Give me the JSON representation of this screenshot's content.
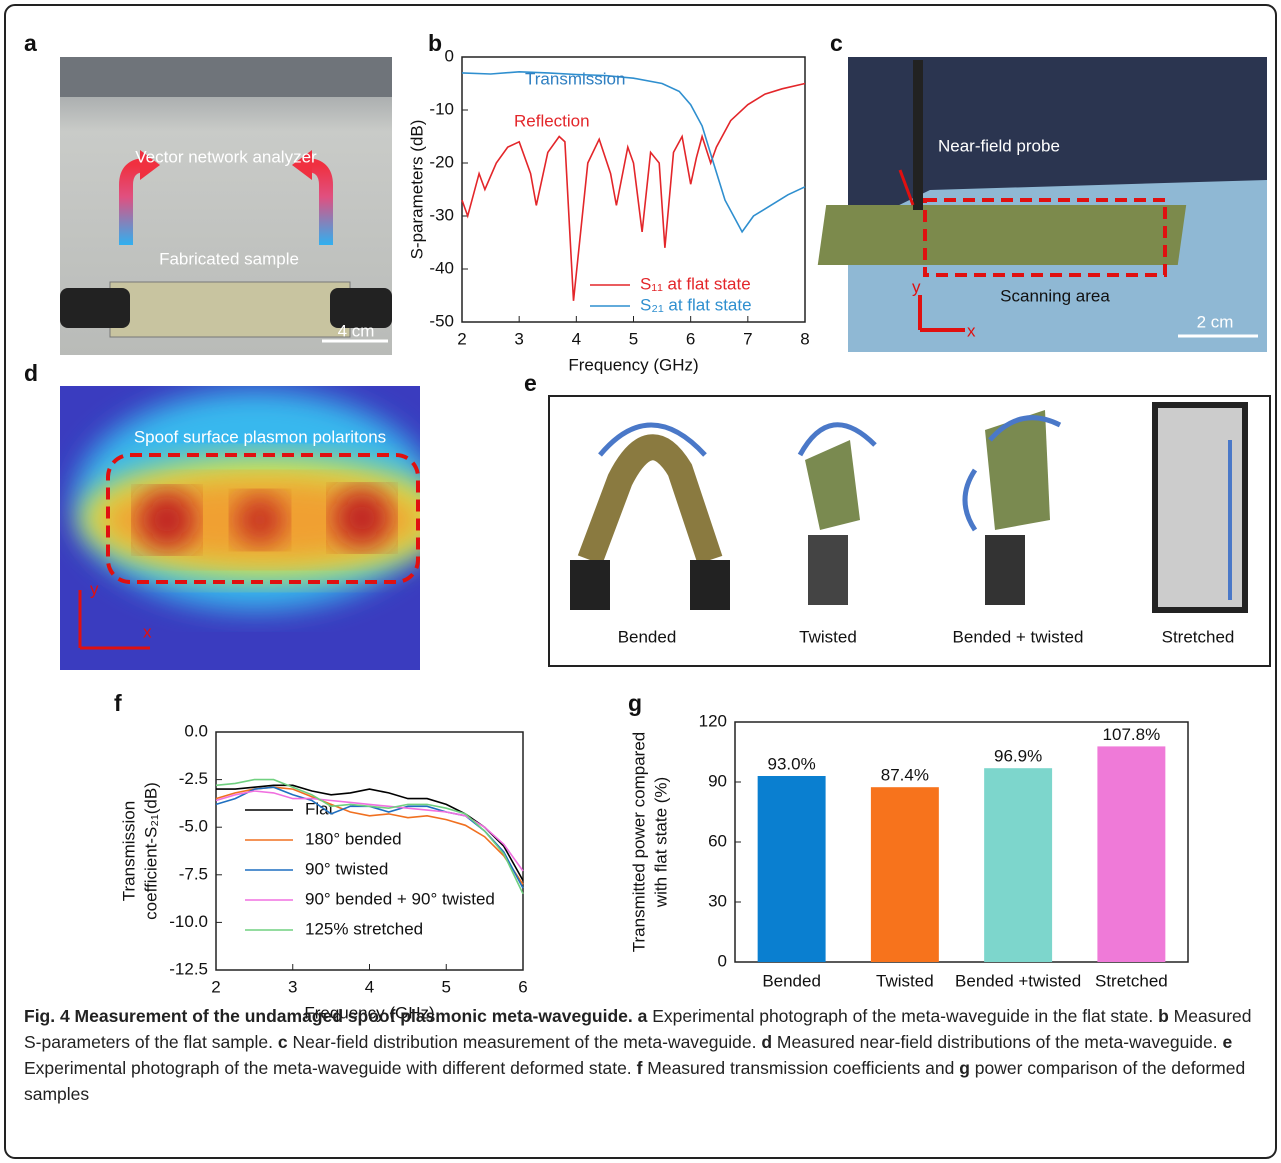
{
  "panel_labels": [
    "a",
    "b",
    "c",
    "d",
    "e",
    "f",
    "g"
  ],
  "photos": {
    "a": {
      "analyzer": "Vector network analyzer",
      "sample": "Fabricated sample",
      "scale": "4 cm"
    },
    "c": {
      "probe": "Near-field probe",
      "area": "Scanning area",
      "scale": "2 cm",
      "y": "y",
      "x": "x"
    },
    "d": {
      "title": "Spoof surface plasmon polaritons",
      "y": "y",
      "x": "x"
    },
    "e": {
      "states": [
        "Bended",
        "Twisted",
        "Bended + twisted",
        "Stretched"
      ]
    }
  },
  "chart_data": [
    {
      "type": "line",
      "xlabel": "Frequency (GHz)",
      "ylabel": [
        "S-parameters (dB)"
      ],
      "xlim": [
        2,
        8
      ],
      "xticks": [
        2,
        3,
        4,
        5,
        6,
        7,
        8
      ],
      "ylim": [
        -50,
        0
      ],
      "yticks": [
        -50,
        -40,
        -30,
        -20,
        -10,
        0
      ],
      "annotations": [
        {
          "text": "Transmission",
          "color": "#2f7fc1"
        },
        {
          "text": "Reflection",
          "color": "#e3262a"
        }
      ],
      "series": [
        {
          "name": "S₁₁ at flat state",
          "color": "#e3262a",
          "x": [
            2,
            2.1,
            2.3,
            2.4,
            2.6,
            2.8,
            3.0,
            3.2,
            3.3,
            3.5,
            3.7,
            3.8,
            3.95,
            4.2,
            4.4,
            4.6,
            4.7,
            4.9,
            5.0,
            5.15,
            5.3,
            5.45,
            5.55,
            5.7,
            5.85,
            6.0,
            6.1,
            6.2,
            6.35,
            6.45,
            6.7,
            7.0,
            7.3,
            7.6,
            8
          ],
          "values": [
            -27,
            -30,
            -22,
            -25,
            -20,
            -17,
            -16,
            -22,
            -28,
            -18,
            -15,
            -16,
            -46,
            -20,
            -15.5,
            -22,
            -28,
            -17,
            -20,
            -33,
            -18,
            -20,
            -36,
            -18,
            -15,
            -24,
            -19,
            -15,
            -20,
            -17,
            -12,
            -9,
            -7,
            -6,
            -5
          ]
        },
        {
          "name": "S₂₁ at flat state",
          "color": "#2f8fcf",
          "x": [
            2,
            2.5,
            3,
            3.5,
            4,
            4.5,
            5,
            5.5,
            5.8,
            6,
            6.2,
            6.4,
            6.6,
            6.8,
            6.9,
            7.1,
            7.4,
            7.7,
            8
          ],
          "values": [
            -3,
            -3.2,
            -2.8,
            -3,
            -3.3,
            -3.5,
            -4,
            -5,
            -6.5,
            -9,
            -13,
            -20,
            -27,
            -31,
            -33,
            -30,
            -28,
            -26,
            -24.5
          ]
        }
      ]
    },
    {
      "type": "line",
      "xlabel": "Frequency (GHz)",
      "ylabel": [
        "Transmission",
        "coefficient-S₂₁(dB)"
      ],
      "xlim": [
        2,
        6
      ],
      "xticks": [
        2,
        3,
        4,
        5,
        6
      ],
      "ylim": [
        -12.5,
        0
      ],
      "yticks": [
        -12.5,
        {
          "value": -10,
          "label": "-10.0"
        },
        -7.5,
        {
          "value": -5,
          "label": "-5.0"
        },
        -2.5,
        {
          "value": 0,
          "label": "0.0"
        }
      ],
      "x": [
        2,
        2.25,
        2.5,
        2.75,
        3,
        3.25,
        3.5,
        3.75,
        4,
        4.25,
        4.5,
        4.75,
        5,
        5.25,
        5.5,
        5.75,
        6
      ],
      "series": [
        {
          "name": "Flat",
          "color": "#000000",
          "values": [
            -3.0,
            -3.0,
            -2.9,
            -2.8,
            -2.8,
            -3.1,
            -3.3,
            -3.2,
            -3.0,
            -3.2,
            -3.5,
            -3.5,
            -3.8,
            -4.3,
            -5.0,
            -6.0,
            -7.8
          ]
        },
        {
          "name": "180° bended",
          "color": "#f07020",
          "values": [
            -3.5,
            -3.2,
            -3.0,
            -2.9,
            -3.0,
            -3.4,
            -3.8,
            -4.2,
            -4.4,
            -4.3,
            -4.5,
            -4.4,
            -4.6,
            -4.9,
            -5.5,
            -6.5,
            -8.0
          ]
        },
        {
          "name": "90° twisted",
          "color": "#1f6fc0",
          "values": [
            -3.8,
            -3.5,
            -3.0,
            -2.9,
            -3.3,
            -3.6,
            -4.3,
            -3.9,
            -3.9,
            -4.2,
            -3.9,
            -3.9,
            -4.2,
            -4.4,
            -5.2,
            -6.3,
            -8.2
          ]
        },
        {
          "name": "90° bended + 90° twisted",
          "color": "#f070e0",
          "values": [
            -3.6,
            -3.3,
            -3.1,
            -3.2,
            -3.5,
            -3.5,
            -3.6,
            -3.7,
            -3.8,
            -3.9,
            -4.0,
            -4.1,
            -4.2,
            -4.4,
            -5.0,
            -5.9,
            -7.3
          ]
        },
        {
          "name": "125% stretched",
          "color": "#70d080",
          "values": [
            -2.8,
            -2.7,
            -2.5,
            -2.5,
            -2.9,
            -3.3,
            -3.9,
            -3.8,
            -3.9,
            -4.0,
            -3.8,
            -3.8,
            -4.0,
            -4.3,
            -5.2,
            -6.4,
            -8.5
          ]
        }
      ]
    },
    {
      "type": "bar",
      "ylabel": [
        "Transmitted power compared",
        "with flat state (%)"
      ],
      "categories": [
        "Bended",
        "Twisted",
        "Bended +twisted",
        "Stretched"
      ],
      "values": [
        93.0,
        87.4,
        96.9,
        107.8
      ],
      "value_labels": [
        "93.0%",
        "87.4%",
        "96.9%",
        "107.8%"
      ],
      "colors": [
        "#0a7fd0",
        "#f7731c",
        "#7dd6cc",
        "#ef7ad8"
      ],
      "ylim": [
        0,
        120
      ],
      "yticks": [
        0,
        30,
        60,
        90,
        120
      ]
    }
  ],
  "caption": {
    "title": "Fig. 4 Measurement of the undamaged spoof plasmonic meta-waveguide.",
    "parts": [
      {
        "label": "a",
        "text": "Experimental photograph of the meta-waveguide in the flat state."
      },
      {
        "label": "b",
        "text": "Measured S-parameters of the flat sample."
      },
      {
        "label": "c",
        "text": "Near-field distribution measurement of the meta-waveguide."
      },
      {
        "label": "d",
        "text": "Measured near-field distributions of the meta-waveguide."
      },
      {
        "label": "e",
        "text": "Experimental photograph of the meta-waveguide with different deformed state."
      },
      {
        "label": "f",
        "text": "Measured transmission coefficients and"
      },
      {
        "label": "g",
        "text": "power comparison of the deformed samples"
      }
    ]
  }
}
